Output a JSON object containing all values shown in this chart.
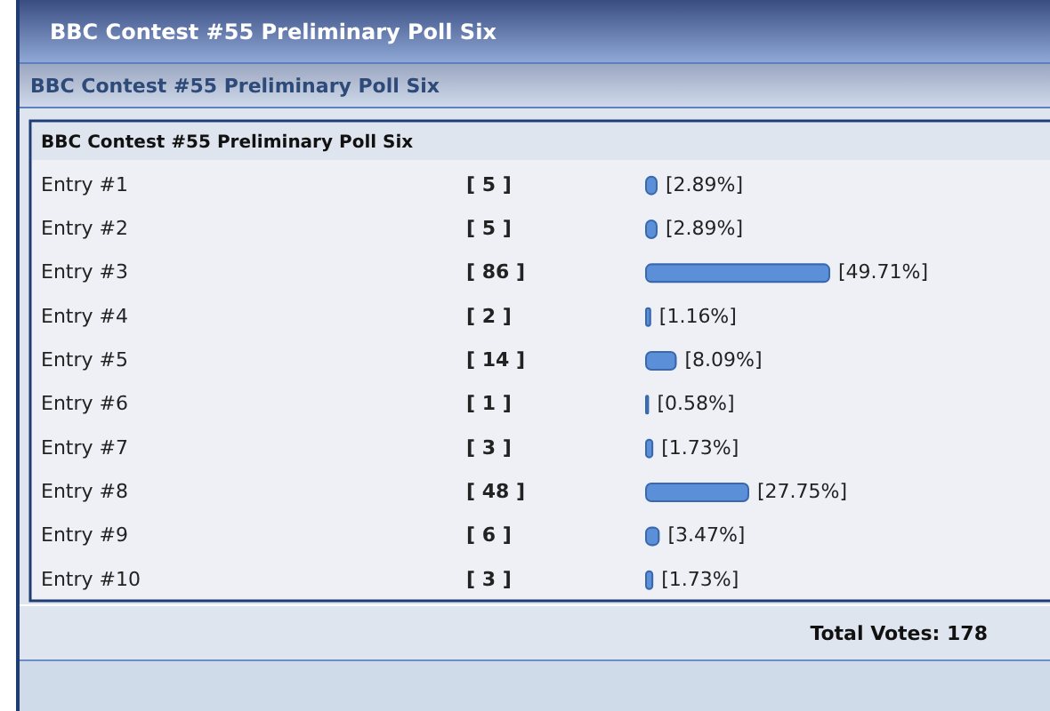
{
  "chart_data": {
    "type": "bar",
    "orientation": "horizontal",
    "title": "BBC Contest #55 Preliminary Poll Six",
    "subtitle": "BBC Contest #55 Preliminary Poll Six",
    "categories": [
      "Entry #1",
      "Entry #2",
      "Entry #3",
      "Entry #4",
      "Entry #5",
      "Entry #6",
      "Entry #7",
      "Entry #8",
      "Entry #9",
      "Entry #10"
    ],
    "values": [
      2.89,
      2.89,
      49.71,
      1.16,
      8.09,
      0.58,
      1.73,
      27.75,
      3.47,
      1.73
    ],
    "value_labels": [
      "[2.89%]",
      "[2.89%]",
      "[49.71%]",
      "[1.16%]",
      "[8.09%]",
      "[0.58%]",
      "[1.73%]",
      "[27.75%]",
      "[3.47%]",
      "[1.73%]"
    ],
    "color": "#5b8fd8",
    "annotations": [
      "BBC Contest #55 Preliminary Poll Six",
      "[ 5 ]",
      "[ 5 ]",
      "[ 86 ]",
      "[ 2 ]",
      "[ 14 ]",
      "[ 1 ]",
      "[ 3 ]",
      "[ 48 ]",
      "[ 6 ]",
      "[ 3 ]",
      "Total Votes: 178"
    ]
  }
}
